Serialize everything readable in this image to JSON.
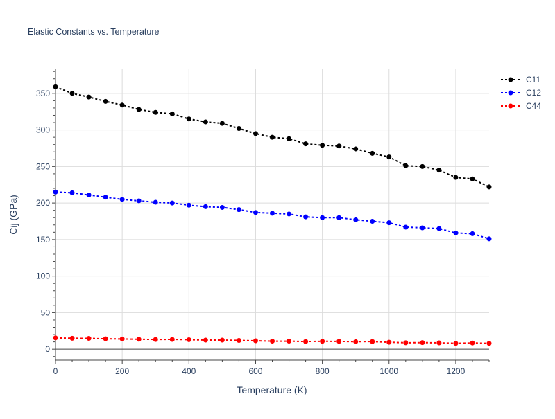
{
  "chart_data": {
    "type": "line",
    "title": "Elastic Constants vs. Temperature",
    "xlabel": "Temperature (K)",
    "ylabel": "Cij (GPa)",
    "xlim": [
      0,
      1300
    ],
    "ylim": [
      -15,
      383
    ],
    "xticks": [
      0,
      200,
      400,
      600,
      800,
      1000,
      1200
    ],
    "yticks": [
      0,
      50,
      100,
      150,
      200,
      250,
      300,
      350
    ],
    "grid": true,
    "legend_position": "top-right",
    "line_style": "dotted with markers",
    "x": [
      0,
      50,
      100,
      150,
      200,
      250,
      300,
      350,
      400,
      450,
      500,
      550,
      600,
      650,
      700,
      750,
      800,
      850,
      900,
      950,
      1000,
      1050,
      1100,
      1150,
      1200,
      1250,
      1300
    ],
    "series": [
      {
        "name": "C11",
        "color": "#000000",
        "values": [
          359,
          350,
          345,
          339,
          334,
          328,
          324,
          322,
          315,
          311,
          309,
          302,
          295,
          290,
          288,
          281,
          279,
          278,
          274,
          268,
          263,
          251,
          250,
          245,
          235,
          233,
          222
        ]
      },
      {
        "name": "C12",
        "color": "#0000ff",
        "values": [
          215,
          214,
          211,
          208,
          205,
          203,
          201,
          200,
          197,
          195,
          194,
          191,
          187,
          186,
          185,
          181,
          180,
          180,
          177,
          175,
          173,
          167,
          166,
          165,
          159,
          158,
          151
        ]
      },
      {
        "name": "C44",
        "color": "#ff0000",
        "values": [
          15.5,
          15,
          14.8,
          14.3,
          14,
          13.6,
          13.3,
          13.4,
          13,
          12.5,
          12.5,
          12,
          11.5,
          11,
          11,
          10.5,
          10.8,
          10.7,
          10.3,
          10.5,
          9.5,
          8.8,
          9,
          8.7,
          8,
          8.5,
          8
        ]
      }
    ]
  }
}
